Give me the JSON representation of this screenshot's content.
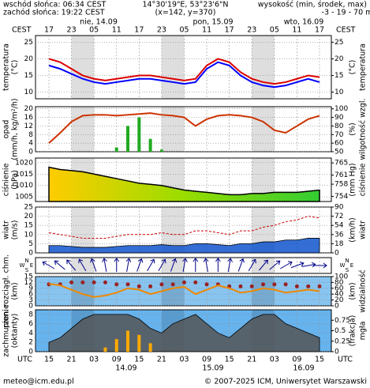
{
  "header": {
    "sunrise": "wschód słońca: 06:34 CEST",
    "sunset": "zachód słońca: 19:22 CEST",
    "coords": "14°30'19\"E, 53°23'6\"N",
    "grid_point": "(x=142, y=370)",
    "height_title": "wysokość (min, środek, max)",
    "height_values": "-3 - 19 - 70 m"
  },
  "time_axis": {
    "top_zone": "CEST",
    "bottom_zone": "UTC",
    "cest_labels": [
      "17",
      "23",
      "05",
      "11",
      "17",
      "23",
      "05",
      "11",
      "17",
      "23",
      "05",
      "11",
      "17"
    ],
    "utc_labels": [
      "15",
      "21",
      "03",
      "09",
      "15",
      "21",
      "03",
      "09",
      "15",
      "21",
      "03",
      "09",
      "15"
    ],
    "top_dates": [
      "nie, 14.09",
      "pon, 15.09",
      "wto, 16.09"
    ],
    "bottom_dates": [
      "14.09",
      "15.09",
      "16.09"
    ]
  },
  "footer": {
    "email": "meteo@icm.edu.pl",
    "copyright": "© 2007-2025 ICM, Uniwersytet Warszawski"
  },
  "chart_data": [
    {
      "type": "line",
      "left_label": "temperatura",
      "left_unit": "(°C)",
      "right_unit": "(°C)",
      "right_label": "temperatura",
      "background": "#ffffff",
      "ylim": [
        8,
        27
      ],
      "yticks": [
        10,
        15,
        20,
        25
      ],
      "y2lim": [
        8,
        27
      ],
      "y2ticks": [
        10,
        15,
        20,
        25
      ],
      "series": [
        {
          "type": "line",
          "color": "#0000ff",
          "values": [
            18,
            17,
            15.5,
            14,
            13,
            12.5,
            13,
            13.5,
            14,
            14,
            13.5,
            13,
            12.5,
            13,
            17,
            19,
            18,
            15,
            13,
            12,
            11.5,
            12,
            13,
            14,
            13
          ]
        },
        {
          "type": "line",
          "color": "#dd0000",
          "values": [
            20,
            19,
            17,
            15,
            14,
            13.5,
            14,
            14.5,
            15,
            15,
            14.5,
            14,
            13.5,
            14,
            18,
            20,
            19,
            16,
            14,
            13,
            12.5,
            13,
            14,
            15,
            14.5
          ]
        }
      ]
    },
    {
      "type": "bar",
      "left_label": "opad",
      "left_unit": "(mm/h, kg/m²/h)",
      "right_unit": "(%)",
      "right_label": "wilgotność wzgl.",
      "background": "#ffffff",
      "ylim": [
        0,
        21
      ],
      "yticks": [
        0,
        4,
        8,
        12,
        16,
        20
      ],
      "y2lim": [
        50,
        102.5
      ],
      "y2ticks": [
        50,
        60,
        70,
        80,
        90,
        100
      ],
      "series": [
        {
          "type": "bar",
          "color": "#22aa22",
          "values": [
            0,
            0,
            0,
            0,
            0,
            0,
            2,
            12,
            16,
            6,
            1,
            0,
            0,
            0,
            0,
            0,
            0,
            0,
            0,
            0,
            0,
            0,
            0,
            0,
            0
          ]
        },
        {
          "type": "line",
          "axis": "y2",
          "color": "#cc3300",
          "values": [
            60,
            72,
            85,
            92,
            93,
            93,
            92,
            93,
            94,
            95,
            93,
            92,
            90,
            80,
            88,
            92,
            93,
            92,
            90,
            85,
            75,
            72,
            80,
            88,
            92
          ]
        }
      ]
    },
    {
      "type": "area",
      "left_label": "ciśnienie",
      "left_unit": "(hPa)",
      "right_unit": "(mm Hg)",
      "right_label": "ciśnienie",
      "background": "#ffffff",
      "ylim": [
        1003,
        1022
      ],
      "yticks": [
        1005,
        1010,
        1015,
        1020
      ],
      "y2lim": [
        752.3,
        766.6
      ],
      "y2ticks": [
        754,
        758,
        761,
        765
      ],
      "series": [
        {
          "type": "gradient",
          "color": "#000000",
          "colors": [
            "#ffcc00",
            "#99dd00",
            "#33cc33"
          ],
          "values": [
            1018,
            1017,
            1016.5,
            1016,
            1015,
            1014,
            1013,
            1012,
            1011,
            1010.5,
            1010,
            1009,
            1008,
            1007.5,
            1007,
            1006.5,
            1006,
            1006,
            1006.5,
            1006.5,
            1007,
            1007,
            1007,
            1007.5,
            1008
          ]
        }
      ]
    },
    {
      "type": "area",
      "left_label": "wiatr",
      "left_unit": "(m/s)",
      "right_unit": "(km/h)",
      "right_label": "wiatr",
      "background": "#ffffff",
      "ylim": [
        0,
        25
      ],
      "yticks": [
        0,
        5,
        10,
        15,
        20,
        25
      ],
      "y2lim": [
        0,
        90
      ],
      "y2ticks": [
        0,
        18,
        36,
        54,
        72,
        90
      ],
      "series": [
        {
          "type": "area",
          "color": "#1155cc",
          "values": [
            4,
            4,
            3.5,
            3,
            3,
            3,
            3.5,
            4,
            4,
            4,
            4.5,
            4,
            4,
            5,
            5,
            4.5,
            4,
            5,
            5,
            6,
            6,
            7,
            7,
            8,
            8
          ]
        },
        {
          "type": "dashed",
          "color": "#cc0000",
          "values": [
            11,
            10,
            9,
            8,
            8,
            8,
            9,
            10,
            10,
            10,
            11,
            10,
            10,
            12,
            12,
            11,
            10,
            12,
            12,
            14,
            15,
            17,
            18,
            20,
            19
          ]
        }
      ]
    },
    {
      "type": "arrows",
      "compass": [
        "W",
        "N",
        "E",
        "S"
      ],
      "background": "#ffffff",
      "series": [
        {
          "type": "arrows",
          "color": "#000088",
          "values": [
            120,
            130,
            140,
            150,
            160,
            170,
            180,
            190,
            200,
            210,
            210,
            200,
            190,
            180,
            170,
            180,
            190,
            200,
            210,
            220,
            230,
            240,
            250,
            260,
            270
          ]
        }
      ]
    },
    {
      "type": "scatter",
      "left_label": "pion. rozciągł. chm.",
      "left_unit": "(km)",
      "right_unit": "(km)",
      "right_label": "widzialność",
      "background": "#88c4f0",
      "ylim": [
        0,
        15
      ],
      "yticks": [
        0,
        3,
        6,
        9,
        12,
        15
      ],
      "y2lim": [
        0,
        100
      ],
      "y2ticks": [
        0,
        20,
        40,
        60,
        80,
        100
      ],
      "series": [
        {
          "type": "dots",
          "color": "#992222",
          "values": [
            11,
            11,
            12,
            12,
            12,
            12,
            11,
            11,
            10,
            10,
            11,
            11,
            12,
            12,
            11,
            11,
            10,
            10,
            10,
            11,
            11,
            11,
            10,
            10,
            10
          ]
        },
        {
          "type": "line",
          "axis": "y2",
          "color": "#ee8800",
          "values": [
            75,
            70,
            55,
            40,
            30,
            35,
            45,
            60,
            55,
            40,
            50,
            60,
            65,
            40,
            55,
            70,
            60,
            45,
            50,
            60,
            55,
            45,
            50,
            55,
            50
          ]
        }
      ]
    },
    {
      "type": "area",
      "left_label": "zachmurzenie",
      "left_unit": "(oktanty)",
      "right_unit": "(frakcja)",
      "right_label": "mgła",
      "background": "#66b3ee",
      "ylim": [
        0,
        9
      ],
      "yticks": [
        0,
        2,
        4,
        6,
        8
      ],
      "y2lim": [
        0,
        1
      ],
      "y2ticks": [
        0,
        0.25,
        0.5,
        0.75
      ],
      "series": [
        {
          "type": "area",
          "color": "#555555",
          "values": [
            2,
            3,
            5,
            7,
            8,
            8,
            8,
            8,
            7,
            5,
            4,
            6,
            7,
            8,
            6,
            4,
            3,
            5,
            7,
            8,
            8,
            6,
            5,
            4,
            3
          ]
        },
        {
          "type": "bar",
          "axis": "y2",
          "color": "#ffaa00",
          "values": [
            0,
            0,
            0,
            0,
            0,
            0.1,
            0.3,
            0.5,
            0.4,
            0.2,
            0,
            0,
            0,
            0,
            0,
            0,
            0,
            0,
            0,
            0,
            0,
            0,
            0,
            0,
            0
          ]
        }
      ]
    }
  ]
}
